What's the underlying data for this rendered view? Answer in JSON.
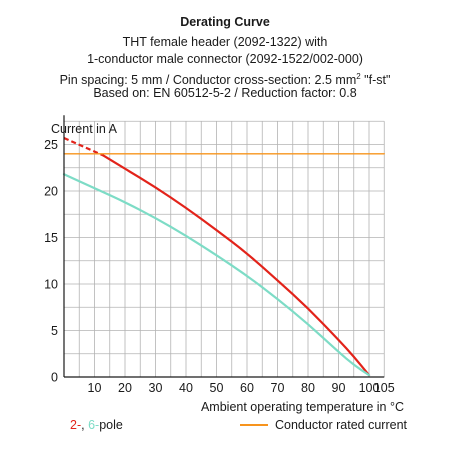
{
  "header": {
    "title": "Derating Curve",
    "line1": "THT female header (2092-1322) with",
    "line2": "1-conductor male connector (2092-1522/002-000)",
    "line3_prefix": "Pin spacing: 5 mm / Conductor cross-section: 2.5 mm",
    "line3_sup": "2",
    "line3_suffix": " \"f-st\"",
    "line4": "Based on: EN 60512-5-2 / Reduction factor: 0.8"
  },
  "legend": {
    "pole_2": "2-",
    "pole_sep": ", ",
    "pole_6": "6-",
    "pole_suffix": "pole",
    "rated": "Conductor rated current"
  },
  "colors": {
    "pole_2": "#e2231a",
    "pole_6": "#7ddcc6",
    "rated": "#f7941d",
    "grid": "#b3b3b3",
    "axis": "#1a1a1a"
  },
  "chart_data": {
    "type": "line",
    "xlabel": "Ambient operating temperature in °C",
    "ylabel": "Current in A",
    "xlim": [
      0,
      105
    ],
    "ylim": [
      0,
      27.5
    ],
    "xticks": [
      10,
      20,
      30,
      40,
      50,
      60,
      70,
      80,
      90,
      100,
      105
    ],
    "yticks": [
      0,
      5,
      10,
      15,
      20,
      25
    ],
    "grid": true,
    "series": [
      {
        "name": "2-pole",
        "color": "#e2231a",
        "dashed_segment": [
          [
            0,
            25.7
          ],
          [
            13,
            23.8
          ]
        ],
        "x": [
          13,
          20,
          30,
          40,
          50,
          60,
          70,
          80,
          90,
          95,
          100
        ],
        "y": [
          23.8,
          22.4,
          20.4,
          18.2,
          15.8,
          13.3,
          10.4,
          7.4,
          4.0,
          2.2,
          0.2
        ]
      },
      {
        "name": "6-pole",
        "color": "#7ddcc6",
        "x": [
          0,
          10,
          20,
          30,
          40,
          50,
          60,
          70,
          80,
          90,
          95,
          100
        ],
        "y": [
          21.8,
          20.3,
          18.8,
          17.1,
          15.2,
          13.1,
          10.9,
          8.4,
          5.7,
          2.7,
          1.3,
          0.2
        ]
      },
      {
        "name": "Conductor rated current",
        "color": "#f7941d",
        "x": [
          0,
          105
        ],
        "y": [
          24,
          24
        ]
      }
    ]
  }
}
